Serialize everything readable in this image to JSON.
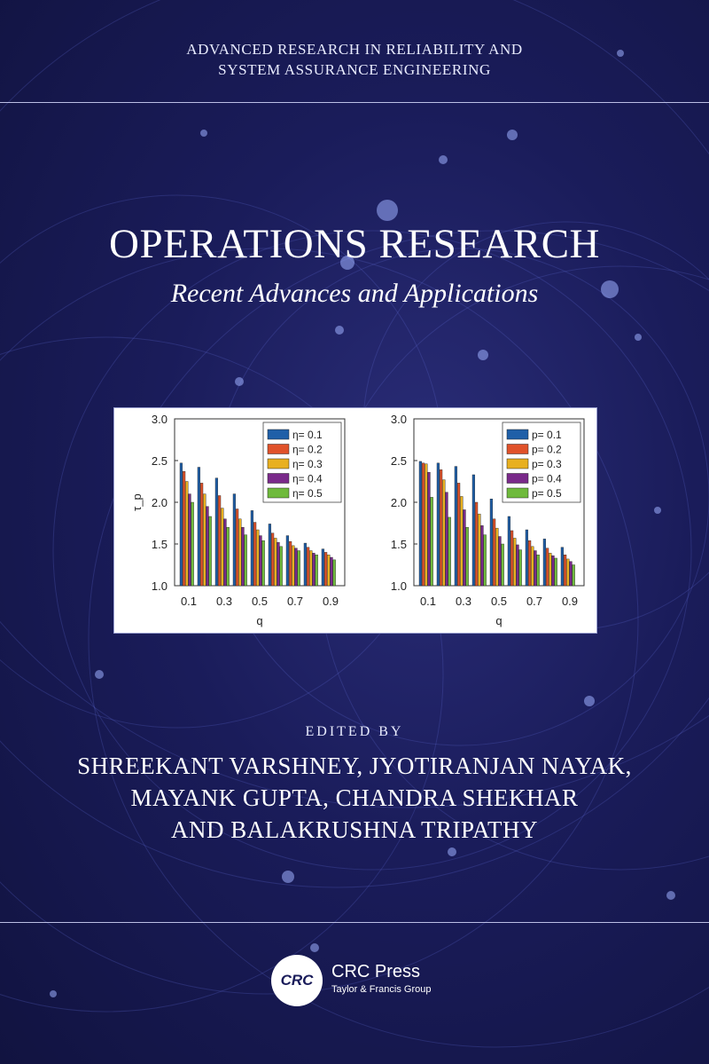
{
  "series": {
    "line1": "ADVANCED RESEARCH IN RELIABILITY AND",
    "line2": "SYSTEM ASSURANCE ENGINEERING"
  },
  "title": "OPERATIONS RESEARCH",
  "subtitle": "Recent Advances and Applications",
  "edited_by": "EDITED BY",
  "editors": {
    "line1": "SHREEKANT VARSHNEY, JYOTIRANJAN NAYAK,",
    "line2": "MAYANK GUPTA, CHANDRA SHEKHAR",
    "line3": "AND BALAKRUSHNA TRIPATHY"
  },
  "publisher": {
    "badge": "CRC",
    "name": "CRC Press",
    "group": "Taylor & Francis Group"
  },
  "colors": {
    "background": "#1a1c5a",
    "text": "#ffffff",
    "series_colors": [
      "#1f5fa8",
      "#e0522a",
      "#e8b020",
      "#7a2a8a",
      "#6fba3c"
    ]
  },
  "chart_data": [
    {
      "type": "bar",
      "xlabel": "q",
      "ylabel": "τ_p",
      "ylim": [
        1.0,
        3.0
      ],
      "yticks": [
        "1.0",
        "1.5",
        "2.0",
        "2.5",
        "3.0"
      ],
      "xticks": [
        "0.1",
        "0.3",
        "0.5",
        "0.7",
        "0.9"
      ],
      "legend_position": "top-right",
      "categories": [
        "0.1",
        "0.2",
        "0.3",
        "0.4",
        "0.5",
        "0.6",
        "0.7",
        "0.8",
        "0.9"
      ],
      "series": [
        {
          "name": "η= 0.1",
          "values": [
            2.47,
            2.42,
            2.29,
            2.1,
            1.9,
            1.74,
            1.6,
            1.51,
            1.44
          ]
        },
        {
          "name": "η= 0.2",
          "values": [
            2.37,
            2.23,
            2.08,
            1.92,
            1.76,
            1.63,
            1.53,
            1.46,
            1.4
          ]
        },
        {
          "name": "η= 0.3",
          "values": [
            2.25,
            2.1,
            1.93,
            1.8,
            1.67,
            1.57,
            1.48,
            1.42,
            1.37
          ]
        },
        {
          "name": "η= 0.4",
          "values": [
            2.1,
            1.95,
            1.8,
            1.7,
            1.6,
            1.52,
            1.45,
            1.39,
            1.34
          ]
        },
        {
          "name": "η= 0.5",
          "values": [
            2.0,
            1.83,
            1.7,
            1.61,
            1.54,
            1.47,
            1.42,
            1.37,
            1.31
          ]
        }
      ]
    },
    {
      "type": "bar",
      "xlabel": "q",
      "ylabel": "",
      "ylim": [
        1.0,
        3.0
      ],
      "yticks": [
        "1.0",
        "1.5",
        "2.0",
        "2.5",
        "3.0"
      ],
      "xticks": [
        "0.1",
        "0.3",
        "0.5",
        "0.7",
        "0.9"
      ],
      "legend_position": "top-right",
      "categories": [
        "0.1",
        "0.2",
        "0.3",
        "0.4",
        "0.5",
        "0.6",
        "0.7",
        "0.8",
        "0.9"
      ],
      "series": [
        {
          "name": "p= 0.1",
          "values": [
            2.49,
            2.47,
            2.43,
            2.33,
            2.04,
            1.83,
            1.67,
            1.56,
            1.46
          ]
        },
        {
          "name": "p= 0.2",
          "values": [
            2.47,
            2.39,
            2.23,
            2.0,
            1.8,
            1.66,
            1.54,
            1.45,
            1.37
          ]
        },
        {
          "name": "p= 0.3",
          "values": [
            2.46,
            2.27,
            2.07,
            1.86,
            1.69,
            1.57,
            1.47,
            1.39,
            1.32
          ]
        },
        {
          "name": "p= 0.4",
          "values": [
            2.36,
            2.12,
            1.91,
            1.72,
            1.59,
            1.49,
            1.42,
            1.36,
            1.29
          ]
        },
        {
          "name": "p= 0.5",
          "values": [
            2.06,
            1.82,
            1.7,
            1.61,
            1.5,
            1.43,
            1.37,
            1.33,
            1.25
          ]
        }
      ]
    }
  ]
}
